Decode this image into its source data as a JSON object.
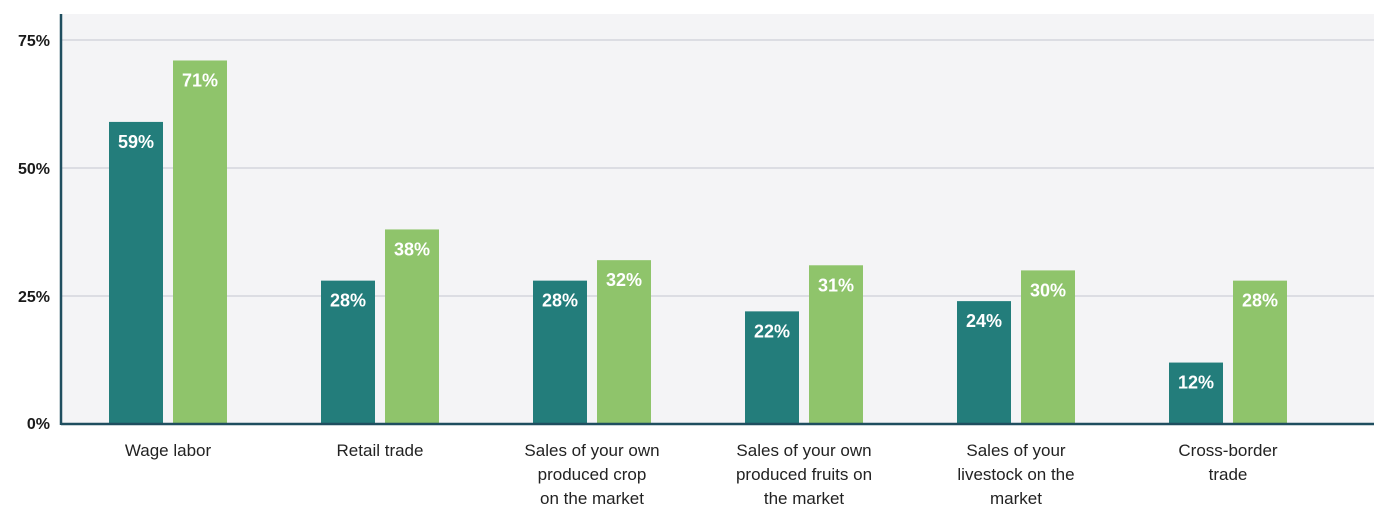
{
  "chart_data": {
    "type": "bar",
    "categories": [
      "Wage labor",
      "Retail trade",
      "Sales of your own produced crop on the market",
      "Sales of your own produced fruits on the market",
      "Sales of your livestock on the market",
      "Cross-border trade"
    ],
    "category_lines": [
      [
        "Wage labor"
      ],
      [
        "Retail trade"
      ],
      [
        "Sales of your own",
        "produced crop",
        "on the market"
      ],
      [
        "Sales of your own",
        "produced fruits on",
        "the market"
      ],
      [
        "Sales of your",
        "livestock on the",
        "market"
      ],
      [
        "Cross-border",
        "trade"
      ]
    ],
    "series": [
      {
        "values": [
          59,
          28,
          28,
          22,
          24,
          12
        ],
        "labels": [
          "59%",
          "28%",
          "28%",
          "22%",
          "24%",
          "12%"
        ],
        "color": "#237d7b"
      },
      {
        "values": [
          71,
          38,
          32,
          31,
          30,
          28
        ],
        "labels": [
          "71%",
          "38%",
          "32%",
          "31%",
          "30%",
          "28%"
        ],
        "color": "#8fc46b"
      }
    ],
    "yticks": [
      0,
      25,
      50,
      75
    ],
    "ytick_labels": [
      "0%",
      "25%",
      "50%",
      "75%"
    ],
    "ylim": [
      0,
      75
    ],
    "grid": true,
    "plot_background": "#f4f4f6",
    "axis_color": "#1f4e5f",
    "title": "",
    "xlabel": "",
    "ylabel": ""
  }
}
